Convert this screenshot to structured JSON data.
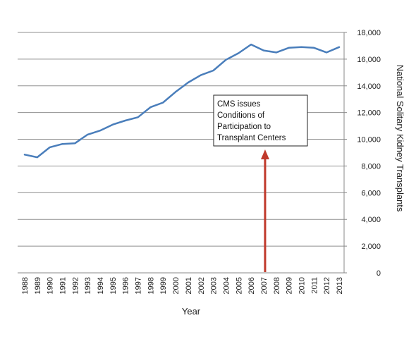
{
  "chart_data": {
    "type": "line",
    "xlabel": "Year",
    "ylabel": "National Solitary Kidney Transplants",
    "ylim": [
      0,
      18000
    ],
    "y_ticks": [
      0,
      2000,
      4000,
      6000,
      8000,
      10000,
      12000,
      14000,
      16000,
      18000
    ],
    "y_tick_labels": [
      "0",
      "2,000",
      "4,000",
      "6,000",
      "8,000",
      "10,000",
      "12,000",
      "14,000",
      "16,000",
      "18,000"
    ],
    "y_axis_side": "right",
    "grid": true,
    "legend": "none",
    "x": [
      "1988",
      "1989",
      "1990",
      "1991",
      "1992",
      "1993",
      "1994",
      "1995",
      "1996",
      "1997",
      "1998",
      "1999",
      "2000",
      "2001",
      "2002",
      "2003",
      "2004",
      "2005",
      "2006",
      "2007",
      "2008",
      "2009",
      "2010",
      "2011",
      "2012",
      "2013"
    ],
    "series": [
      {
        "values": [
          8850,
          8650,
          9400,
          9650,
          9700,
          10350,
          10650,
          11100,
          11400,
          11650,
          12400,
          12750,
          13550,
          14250,
          14800,
          15150,
          15950,
          16450,
          17100,
          16650,
          16500,
          16850,
          16900,
          16850,
          16500,
          16900
        ],
        "color": "#4a7ebb"
      }
    ],
    "annotation": {
      "lines": [
        "CMS issues",
        "Conditions of",
        "Participation to",
        "Transplant Centers"
      ],
      "x": "2007",
      "arrow_color": "#c0392b"
    }
  }
}
